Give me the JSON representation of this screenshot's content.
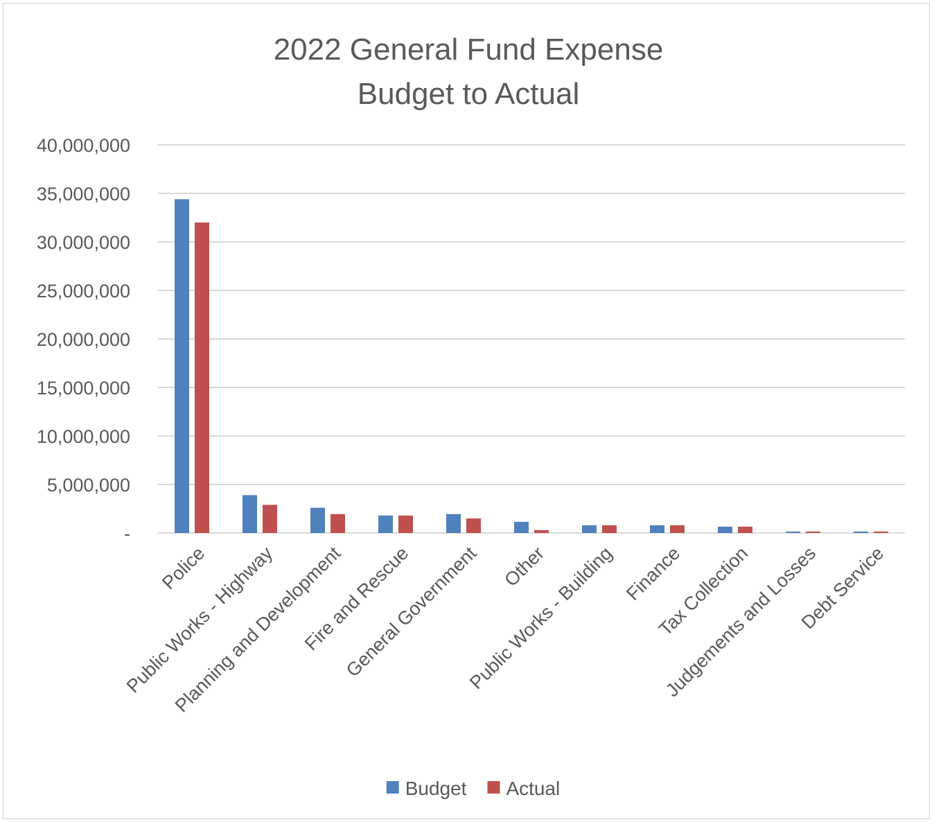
{
  "chart_data": {
    "type": "bar",
    "title_lines": [
      "2022 General Fund Expense",
      "Budget to Actual"
    ],
    "categories": [
      "Police",
      "Public Works - Highway",
      "Planning and Development",
      "Fire and Rescue",
      "General Government",
      "Other",
      "Public Works - Building",
      "Finance",
      "Tax Collection",
      "Judgements and Losses",
      "Debt Service"
    ],
    "series": [
      {
        "name": "Budget",
        "color": "#4f81bd",
        "values": [
          34400000,
          3900000,
          2600000,
          1800000,
          1950000,
          1150000,
          800000,
          800000,
          650000,
          150000,
          150000
        ]
      },
      {
        "name": "Actual",
        "color": "#c0504d",
        "values": [
          32000000,
          2900000,
          1950000,
          1800000,
          1500000,
          300000,
          800000,
          800000,
          650000,
          150000,
          150000
        ]
      }
    ],
    "ylim": [
      0,
      40000000
    ],
    "ytick_values": [
      0,
      5000000,
      10000000,
      15000000,
      20000000,
      25000000,
      30000000,
      35000000,
      40000000
    ],
    "ytick_labels": [
      "-",
      "5,000,000",
      "10,000,000",
      "15,000,000",
      "20,000,000",
      "25,000,000",
      "30,000,000",
      "35,000,000",
      "40,000,000"
    ],
    "xlabel": "",
    "ylabel": "",
    "grid": true,
    "legend_position": "bottom"
  }
}
